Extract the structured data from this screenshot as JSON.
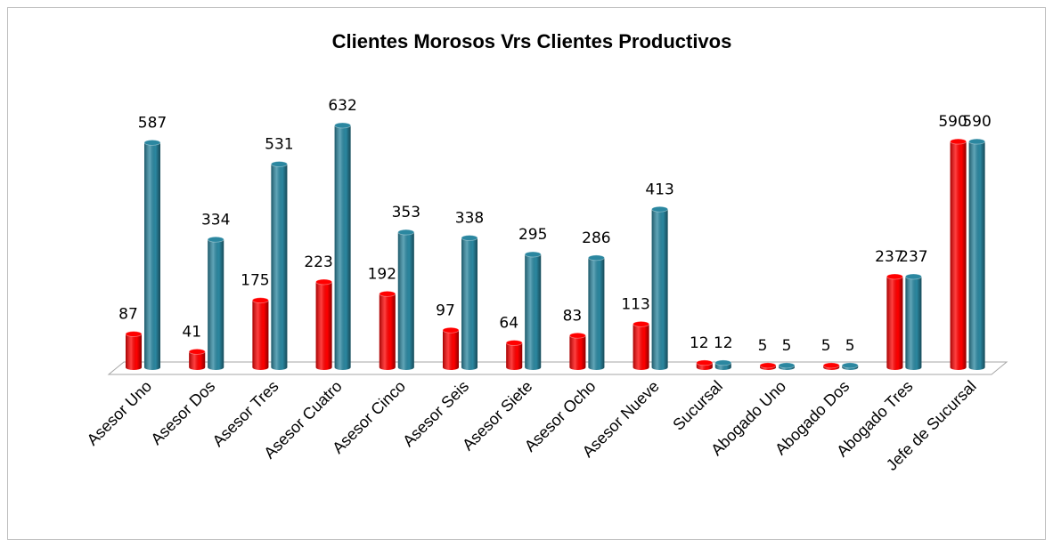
{
  "chart_data": {
    "type": "bar3d",
    "title": "Clientes Morosos Vrs Clientes Productivos",
    "categories": [
      "Asesor Uno",
      "Asesor Dos",
      "Asesor Tres",
      "Asesor Cuatro",
      "Asesor Cinco",
      "Asesor Seis",
      "Asesor Siete",
      "Asesor Ocho",
      "Asesor Nueve",
      "Sucursal",
      "Abogado Uno",
      "Abogado Dos",
      "Abogado Tres",
      "Jefe de Sucursal"
    ],
    "series": [
      {
        "color": "#ff0000",
        "values": [
          87,
          41,
          175,
          223,
          192,
          97,
          64,
          83,
          113,
          12,
          5,
          5,
          237,
          590
        ]
      },
      {
        "color": "#2b87a0",
        "values": [
          587,
          334,
          531,
          632,
          353,
          338,
          295,
          286,
          413,
          12,
          5,
          5,
          237,
          590
        ]
      }
    ]
  }
}
